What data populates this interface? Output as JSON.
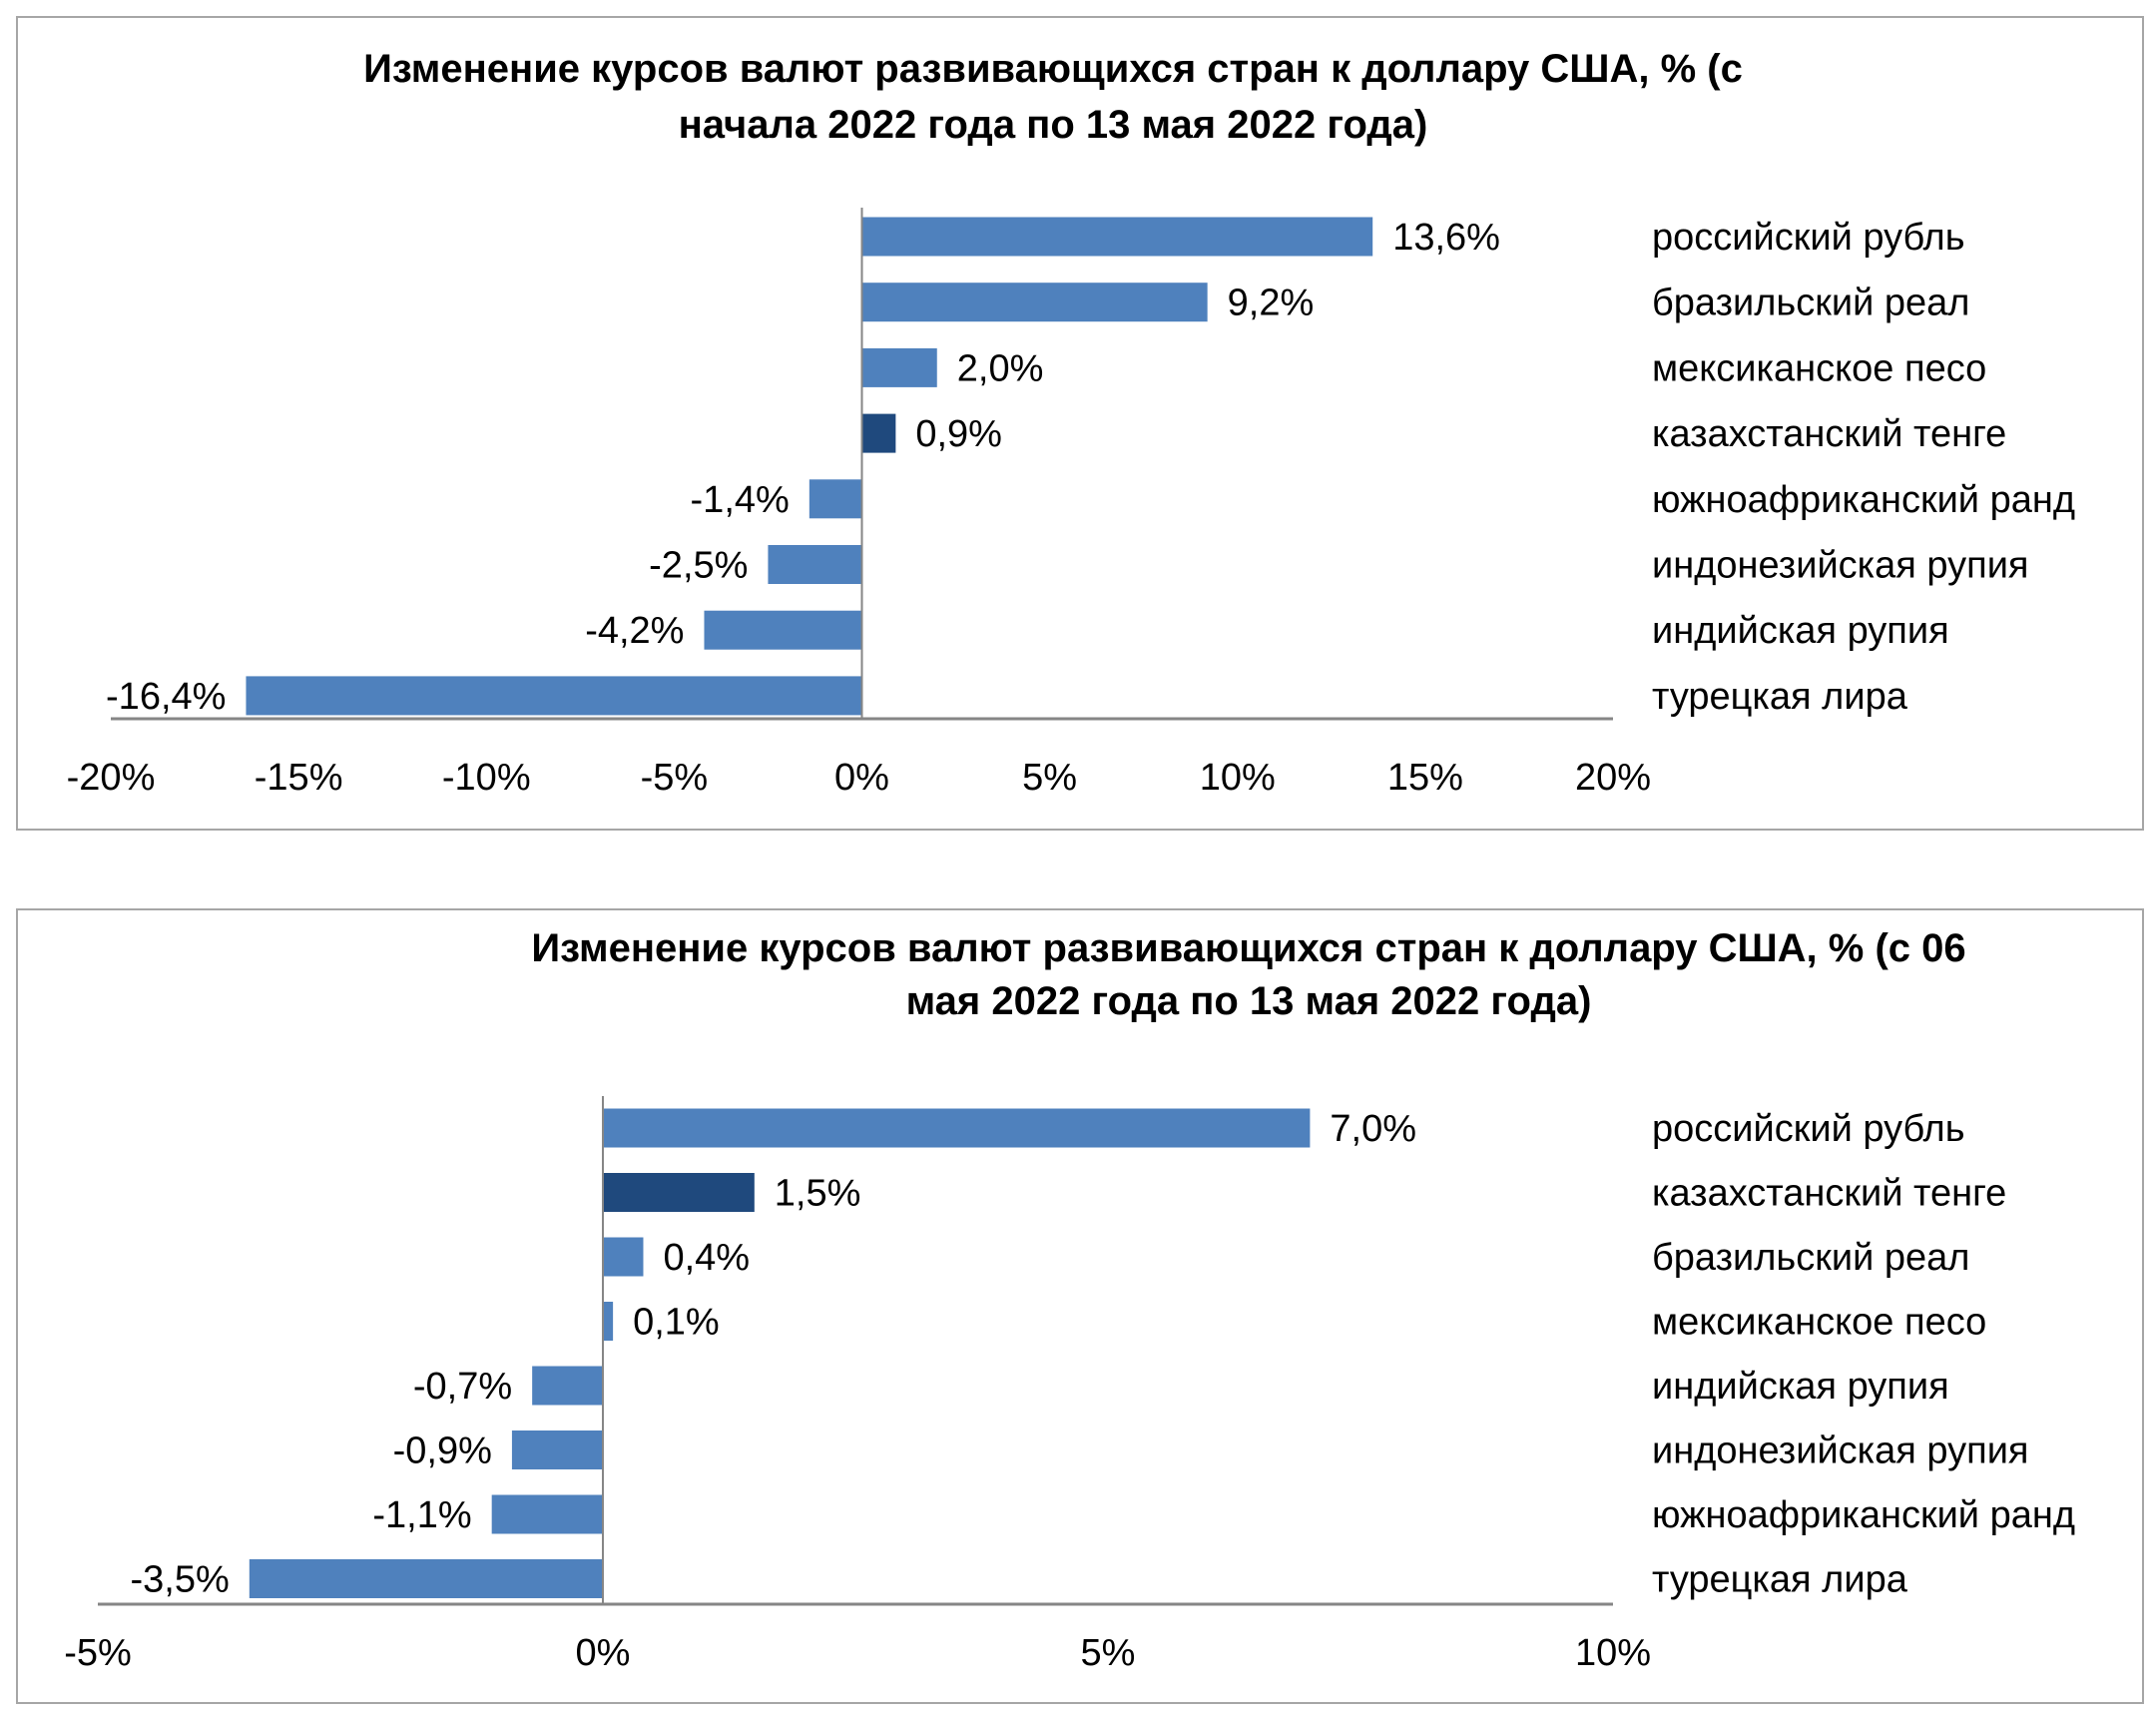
{
  "colors": {
    "bar": "#4f81bd",
    "highlight": "#1f497d",
    "axis": "#868686"
  },
  "chart_data": [
    {
      "type": "bar",
      "orientation": "horizontal",
      "title": [
        "Изменение курсов валют развивающихся стран к доллару США, % (с",
        "начала 2022 года по 13 мая 2022 года)"
      ],
      "categories": [
        "российский рубль",
        "бразильский реал",
        "мексиканское песо",
        "казахстанский тенге",
        "южноафриканский ранд",
        "индонезийская рупия",
        "индийская рупия",
        "турецкая лира"
      ],
      "values": [
        13.6,
        9.2,
        2.0,
        0.9,
        -1.4,
        -2.5,
        -4.2,
        -16.4
      ],
      "data_labels": [
        "13,6%",
        "9,2%",
        "2,0%",
        "0,9%",
        "-1,4%",
        "-2,5%",
        "-4,2%",
        "-16,4%"
      ],
      "highlight": "казахстанский тенге",
      "xlim": [
        -20,
        20
      ],
      "ticks": [
        -20,
        -15,
        -10,
        -5,
        0,
        5,
        10,
        15,
        20
      ],
      "tick_labels": [
        "-20%",
        "-15%",
        "-10%",
        "-5%",
        "0%",
        "5%",
        "10%",
        "15%",
        "20%"
      ],
      "grid": false,
      "legend": "none"
    },
    {
      "type": "bar",
      "orientation": "horizontal",
      "title": [
        "Изменение курсов валют развивающихся стран к доллару США, % (с 06",
        "мая 2022 года по 13 мая 2022 года)"
      ],
      "categories": [
        "российский рубль",
        "казахстанский тенге",
        "бразильский реал",
        "мексиканское песо",
        "индийская рупия",
        "индонезийская рупия",
        "южноафриканский ранд",
        "турецкая лира"
      ],
      "values": [
        7.0,
        1.5,
        0.4,
        0.1,
        -0.7,
        -0.9,
        -1.1,
        -3.5
      ],
      "data_labels": [
        "7,0%",
        "1,5%",
        "0,4%",
        "0,1%",
        "-0,7%",
        "-0,9%",
        "-1,1%",
        "-3,5%"
      ],
      "highlight": "казахстанский тенге",
      "xlim": [
        -5,
        10
      ],
      "ticks": [
        -5,
        0,
        5,
        10
      ],
      "tick_labels": [
        "-5%",
        "0%",
        "5%",
        "10%"
      ],
      "grid": false,
      "legend": "none"
    }
  ]
}
